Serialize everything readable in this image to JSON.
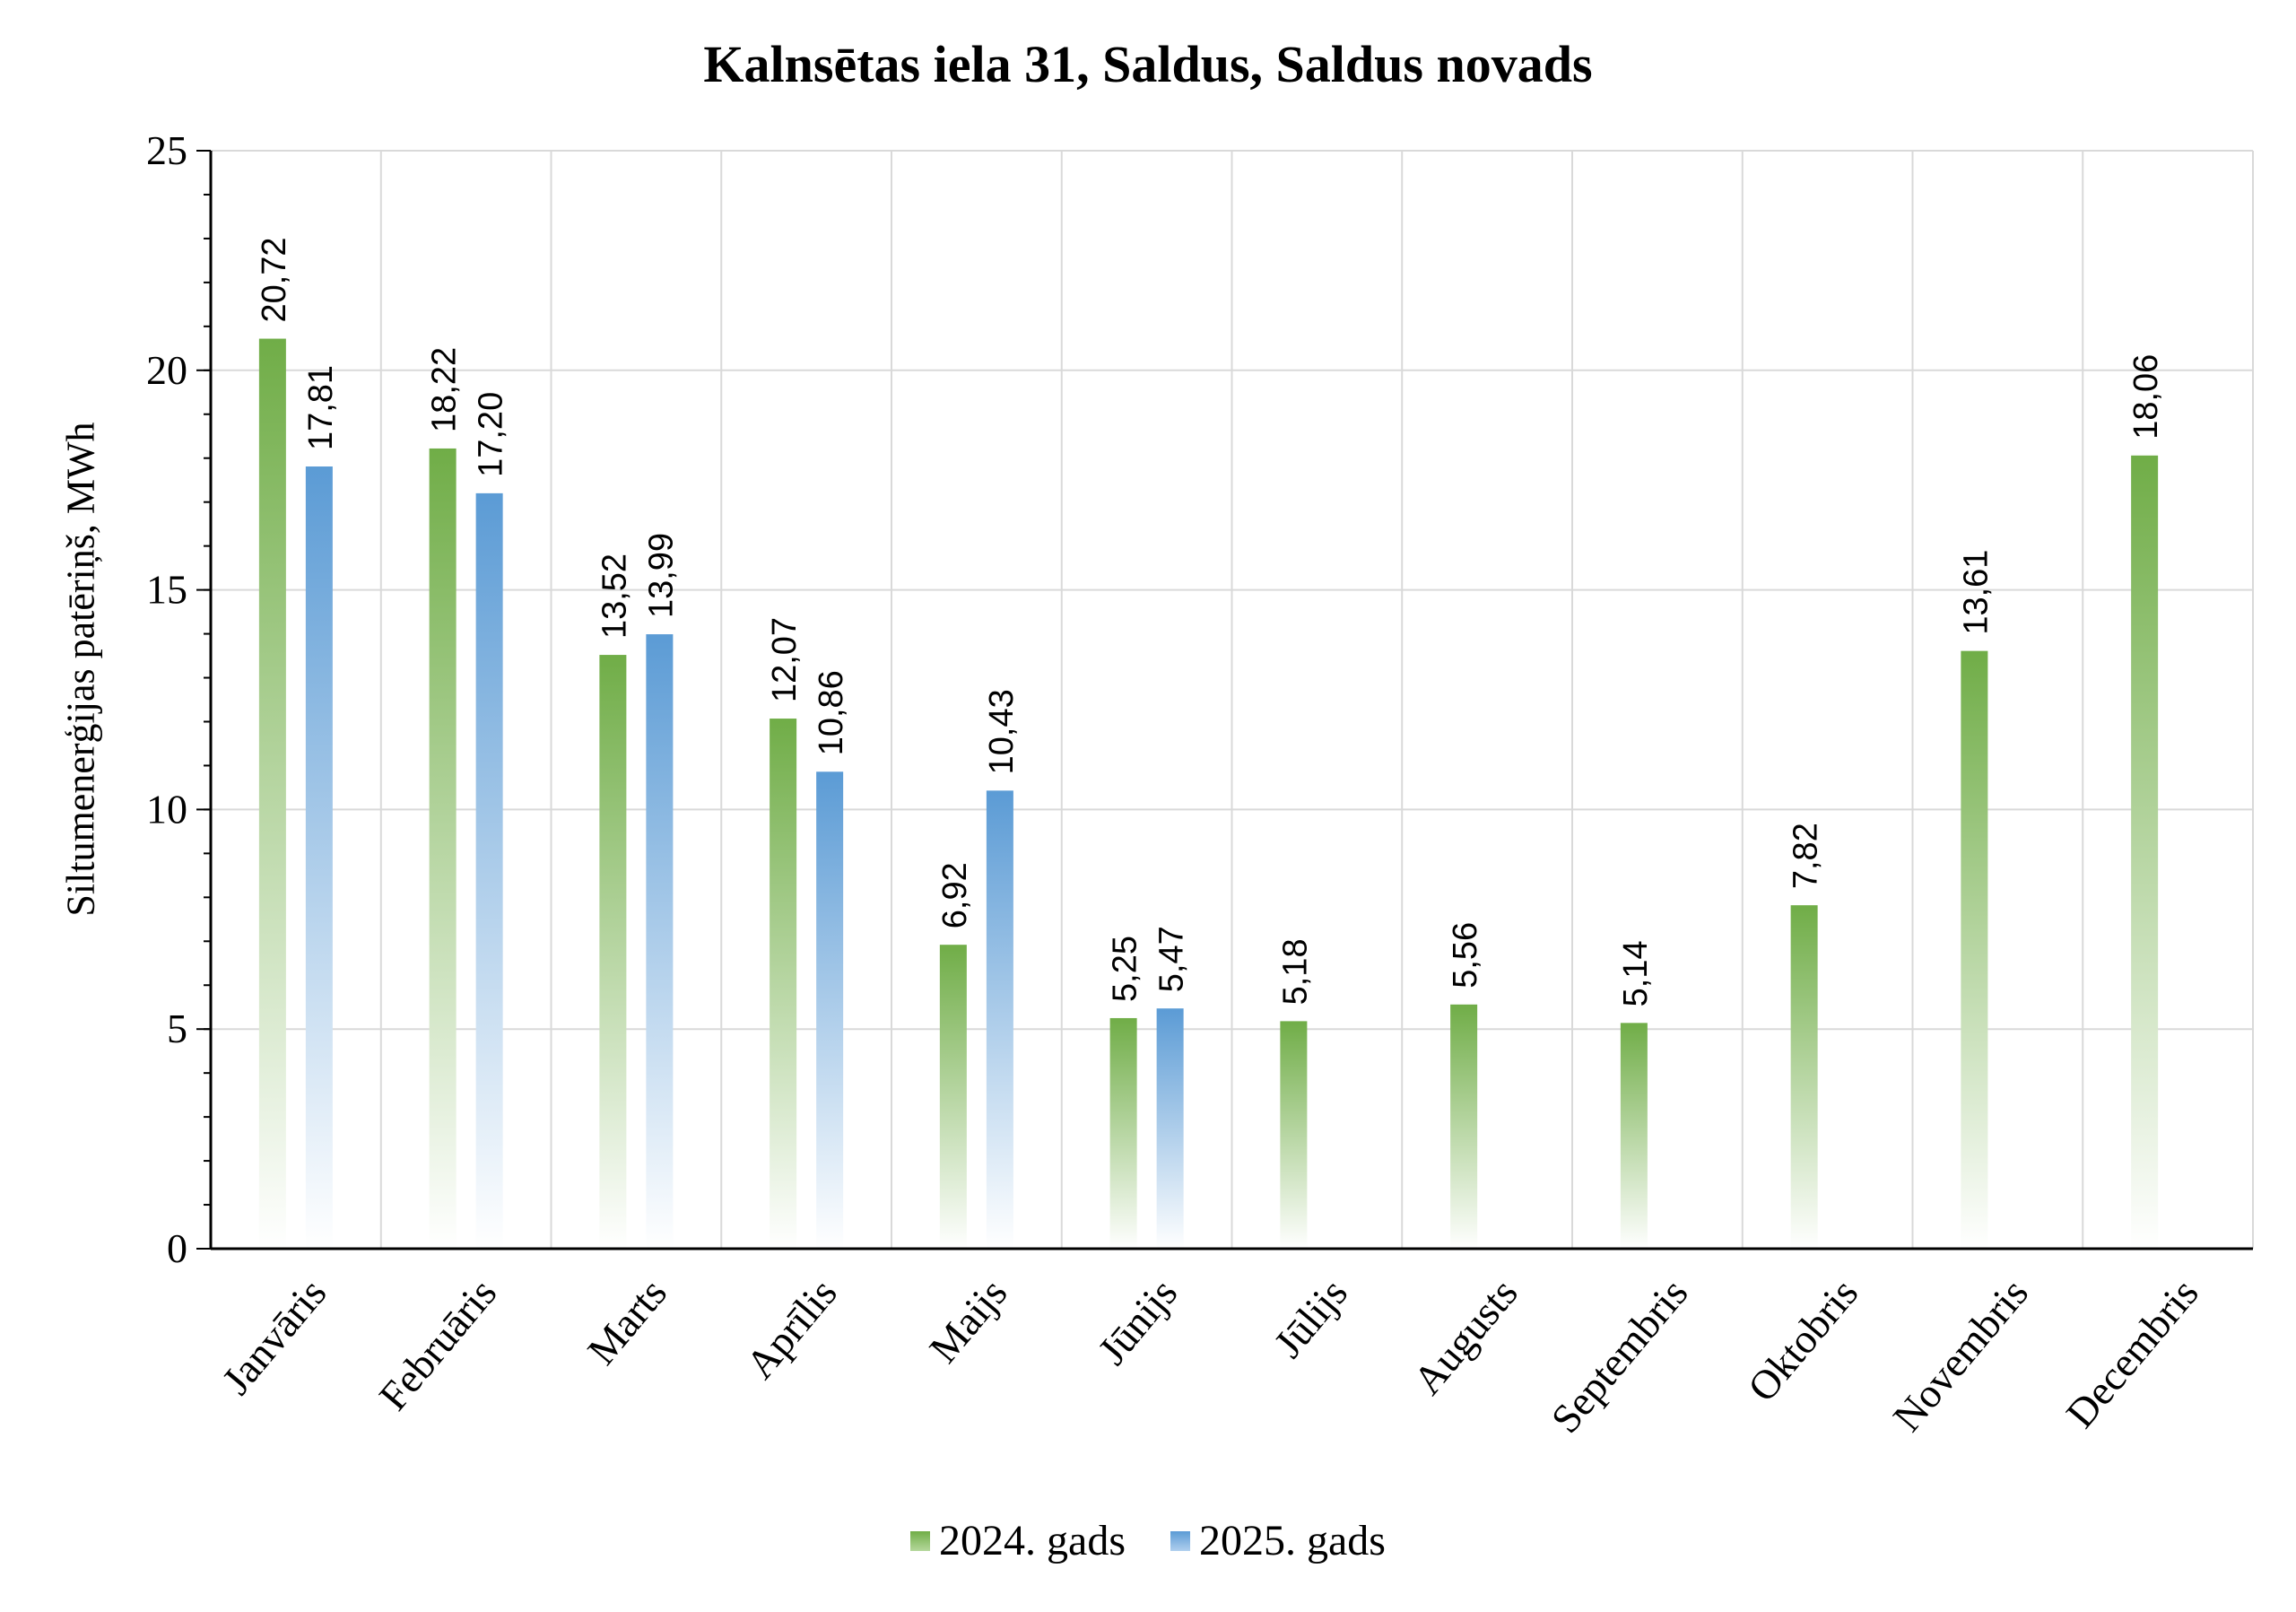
{
  "chart_data": {
    "type": "bar",
    "title": "Kalnsētas iela 31, Saldus, Saldus novads",
    "xlabel": "",
    "ylabel": "Siltumenerģijas patēriņš, MWh",
    "ylim": [
      0,
      25
    ],
    "yticks": [
      0,
      5,
      10,
      15,
      20,
      25
    ],
    "grid": true,
    "legend_position": "bottom",
    "categories": [
      "Janvāris",
      "Februāris",
      "Marts",
      "Aprīlis",
      "Maijs",
      "Jūnijs",
      "Jūlijs",
      "Augusts",
      "Septembris",
      "Oktobris",
      "Novembris",
      "Decembris"
    ],
    "series": [
      {
        "name": "2024. gads",
        "color": "#70ad47",
        "values": [
          20.72,
          18.22,
          13.52,
          12.07,
          6.92,
          5.25,
          5.18,
          5.56,
          5.14,
          7.82,
          13.61,
          18.06
        ],
        "labels": [
          "20,72",
          "18,22",
          "13,52",
          "12,07",
          "6,92",
          "5,25",
          "5,18",
          "5,56",
          "5,14",
          "7,82",
          "13,61",
          "18,06"
        ]
      },
      {
        "name": "2025. gads",
        "color": "#5b9bd5",
        "values": [
          17.81,
          17.2,
          13.99,
          10.86,
          10.43,
          5.47,
          null,
          null,
          null,
          null,
          null,
          null
        ],
        "labels": [
          "17,81",
          "17,20",
          "13,99",
          "10,86",
          "10,43",
          "5,47",
          null,
          null,
          null,
          null,
          null,
          null
        ]
      }
    ]
  }
}
